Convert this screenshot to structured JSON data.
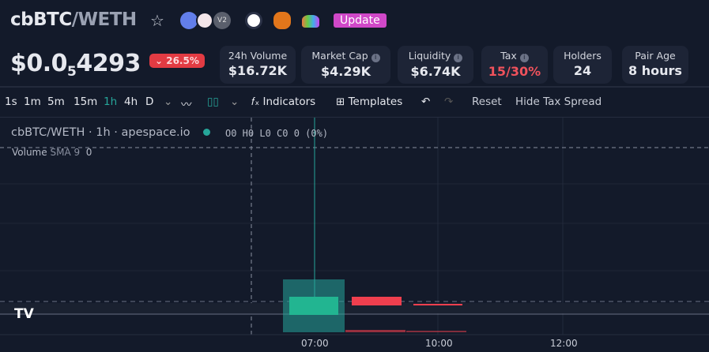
{
  "header": {
    "base": "cbBTC",
    "sep": "/",
    "quote": "WETH",
    "update_label": "Update",
    "icons": [
      "star-icon",
      "ethereum-icon",
      "exchange-icon",
      "v2-badge",
      "chart-icon",
      "metamask-icon",
      "lotus-icon"
    ],
    "v2": "V2"
  },
  "price": {
    "prefix": "$0.0",
    "sub": "5",
    "rest": "4293",
    "change": "26.5%",
    "change_color": "#e23b43"
  },
  "stats": [
    {
      "label": "24h Volume",
      "value": "$16.72K",
      "info": false
    },
    {
      "label": "Market Cap",
      "value": "$4.29K",
      "info": true
    },
    {
      "label": "Liquidity",
      "value": "$6.74K",
      "info": true
    },
    {
      "label": "Tax",
      "value": "15/30%",
      "info": true,
      "color": "#f0525c"
    },
    {
      "label": "Holders",
      "value": "24",
      "info": false
    },
    {
      "label": "Pair Age",
      "value": "8 hours",
      "info": false
    }
  ],
  "toolbar": {
    "intervals": [
      "1s",
      "1m",
      "5m",
      "15m",
      "1h",
      "4h",
      "D"
    ],
    "active": "1h",
    "indicators": "Indicators",
    "templates": "Templates",
    "reset": "Reset",
    "hide_tax": "Hide Tax Spread"
  },
  "chart": {
    "legend_symbol": "cbBTC/WETH",
    "legend_interval": "1h",
    "legend_source": "apespace.io",
    "ohlc": "O0 H0 L0 C0 0 (0%)",
    "volume_label": "Volume",
    "volume_sma": "SMA 9",
    "volume_value": "0"
  },
  "chart_data": {
    "type": "candlestick",
    "x_ticks": [
      "07:00",
      "10:00",
      "12:00"
    ],
    "candles": [
      {
        "direction": "up"
      },
      {
        "direction": "down"
      },
      {
        "direction": "down"
      }
    ],
    "colors": {
      "up": "#26a69a",
      "down": "#ef3f4e"
    }
  }
}
